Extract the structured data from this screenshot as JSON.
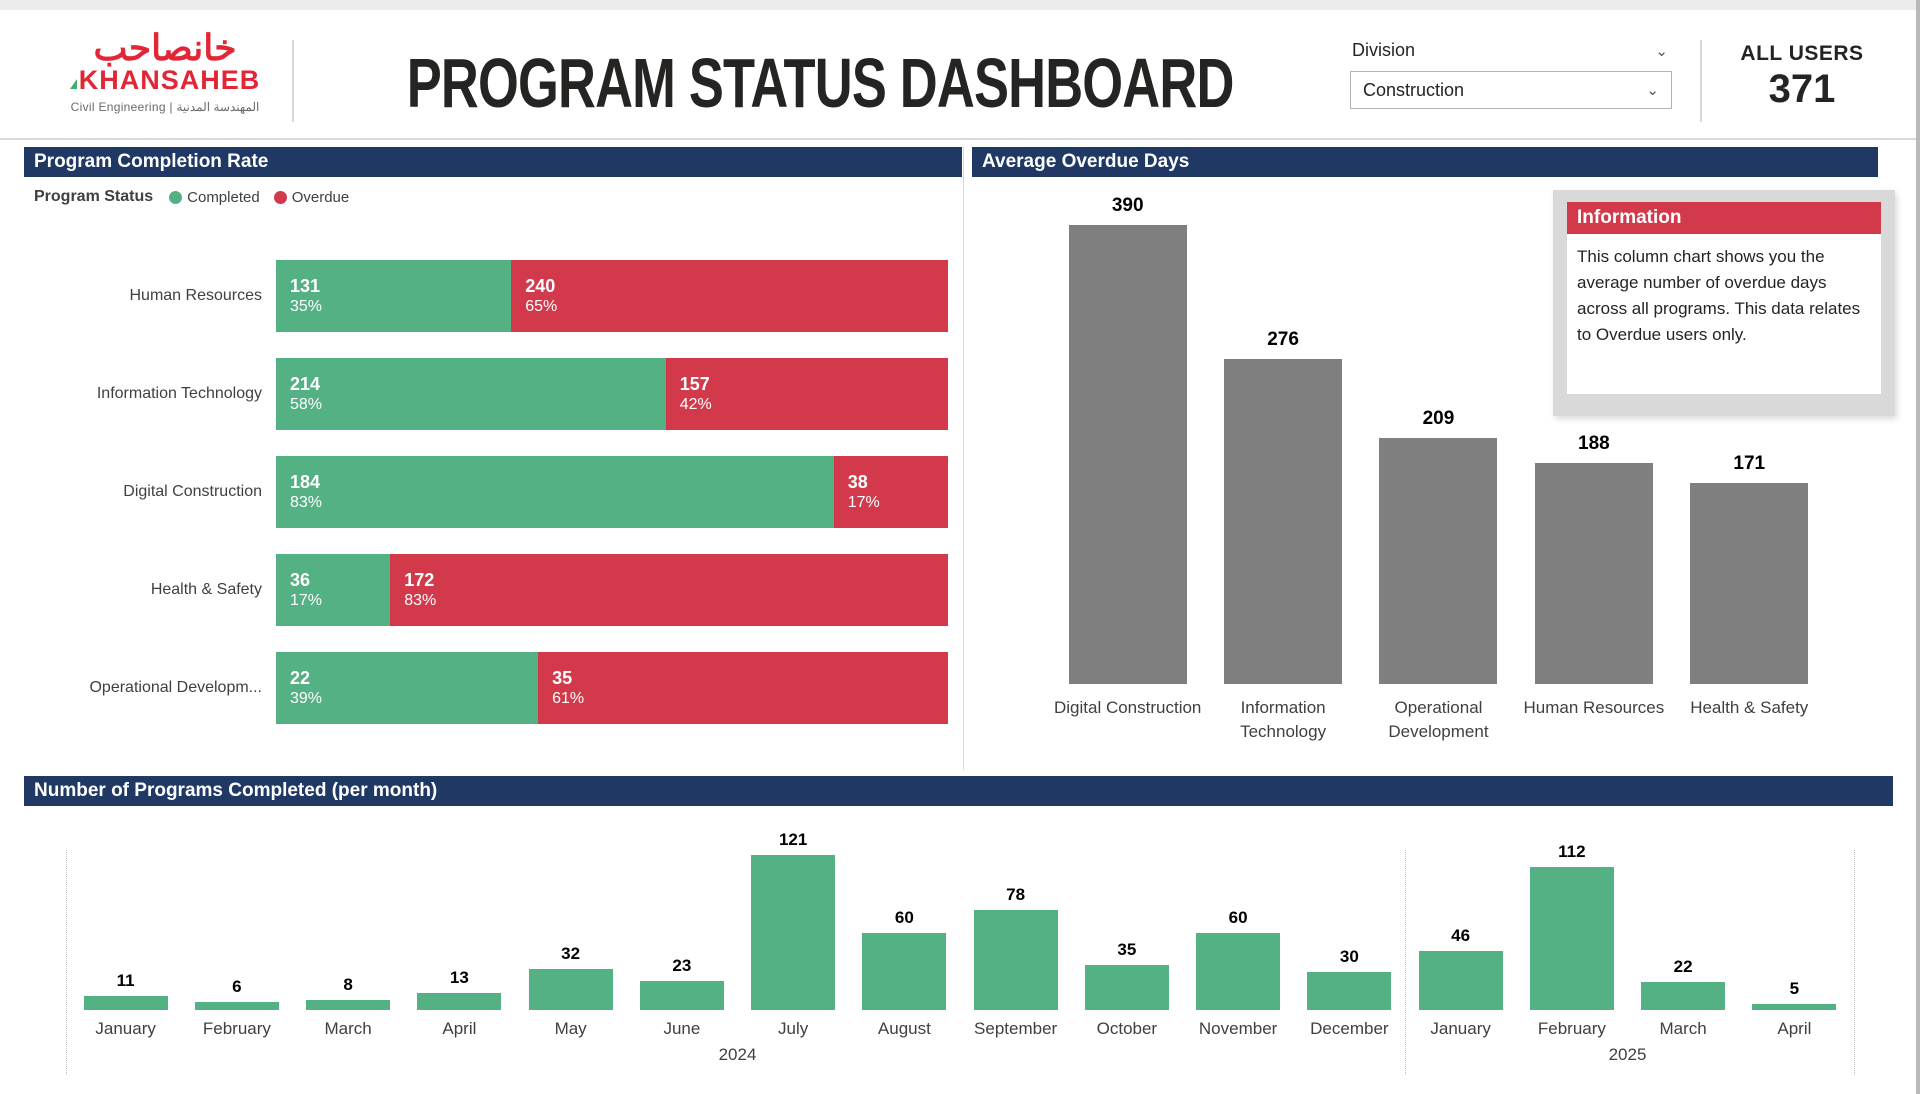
{
  "header": {
    "logo": {
      "arabic": "خانصاحب",
      "name": "KHANSAHEB",
      "tagline": "Civil Engineering | المهندسة المدنية"
    },
    "title": "PROGRAM STATUS DASHBOARD",
    "division_filter": {
      "label": "Division",
      "value": "Construction"
    },
    "all_users": {
      "label": "ALL USERS",
      "value": "371"
    }
  },
  "completion_panel": {
    "title": "Program Completion Rate",
    "legend_title": "Program Status"
  },
  "overdue_panel": {
    "title": "Average Overdue Days",
    "info": {
      "title": "Information",
      "body": "This column chart shows you the average number of overdue days across all programs. This data relates to Overdue users only."
    }
  },
  "monthly_panel": {
    "title": "Number of Programs Completed (per month)"
  },
  "colors": {
    "navy": "#1f3864",
    "green": "#53b183",
    "red": "#d23a4b",
    "gray": "#7f7f7f"
  },
  "chart_data": [
    {
      "type": "bar",
      "title": "Program Completion Rate",
      "orientation": "horizontal",
      "stacked": true,
      "legend_position": "top",
      "categories": [
        "Human Resources",
        "Information Technology",
        "Digital Construction",
        "Health & Safety",
        "Operational Developm..."
      ],
      "series": [
        {
          "name": "Completed",
          "color": "#53b183",
          "values": [
            131,
            214,
            184,
            36,
            22
          ],
          "pct": [
            35,
            58,
            83,
            17,
            39
          ]
        },
        {
          "name": "Overdue",
          "color": "#d23a4b",
          "values": [
            240,
            157,
            38,
            172,
            35
          ],
          "pct": [
            65,
            42,
            17,
            83,
            61
          ]
        }
      ]
    },
    {
      "type": "bar",
      "title": "Average Overdue Days",
      "orientation": "vertical",
      "categories": [
        "Digital Construction",
        "Information Technology",
        "Operational Development",
        "Human Resources",
        "Health & Safety"
      ],
      "values": [
        390,
        276,
        209,
        188,
        171
      ],
      "color": "#7f7f7f",
      "ylim": [
        0,
        420
      ],
      "grid": false,
      "data_labels": true
    },
    {
      "type": "bar",
      "title": "Number of Programs Completed (per month)",
      "orientation": "vertical",
      "categories": [
        "January",
        "February",
        "March",
        "April",
        "May",
        "June",
        "July",
        "August",
        "September",
        "October",
        "November",
        "December",
        "January",
        "February",
        "March",
        "April"
      ],
      "values": [
        11,
        6,
        8,
        13,
        32,
        23,
        121,
        60,
        78,
        35,
        60,
        30,
        46,
        112,
        22,
        5
      ],
      "year_groups": [
        {
          "year": "2024",
          "months": 12
        },
        {
          "year": "2025",
          "months": 4
        }
      ],
      "color": "#53b183",
      "ylim": [
        0,
        130
      ],
      "grid": false,
      "data_labels": true
    }
  ]
}
